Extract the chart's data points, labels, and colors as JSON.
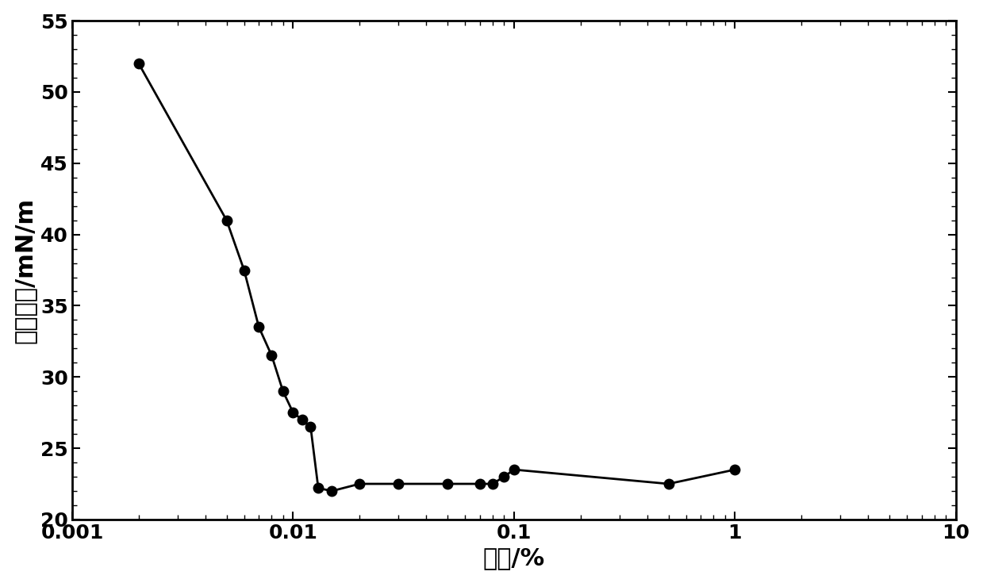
{
  "x": [
    0.002,
    0.005,
    0.006,
    0.007,
    0.008,
    0.009,
    0.01,
    0.011,
    0.012,
    0.013,
    0.015,
    0.02,
    0.03,
    0.05,
    0.07,
    0.08,
    0.09,
    0.1,
    0.5,
    1.0
  ],
  "y": [
    52.0,
    41.0,
    37.5,
    33.5,
    31.5,
    29.0,
    27.5,
    27.0,
    26.5,
    22.2,
    22.0,
    22.5,
    22.5,
    22.5,
    22.5,
    22.5,
    23.0,
    23.5,
    22.5,
    23.5
  ],
  "xlim": [
    0.001,
    10
  ],
  "ylim": [
    20,
    55
  ],
  "yticks": [
    20,
    25,
    30,
    35,
    40,
    45,
    50,
    55
  ],
  "xtick_labels": [
    "0.001",
    "0.01",
    "0.1",
    "1",
    "10"
  ],
  "xlabel": "浓度/%",
  "ylabel": "表面张力/mN/m",
  "line_color": "#000000",
  "marker_color": "#000000",
  "marker_size": 9,
  "line_width": 2.0,
  "background_color": "#ffffff",
  "xlabel_fontsize": 22,
  "ylabel_fontsize": 22,
  "tick_fontsize": 18,
  "tick_fontweight": "bold"
}
